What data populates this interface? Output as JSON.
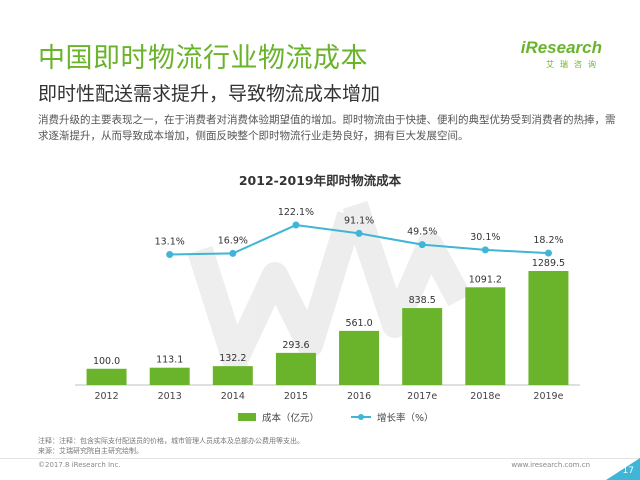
{
  "header": {
    "title": "中国即时物流行业物流成本",
    "subtitle": "即时性配送需求提升，导致物流成本增加",
    "body": "消费升级的主要表现之一，在于消费者对消费体验期望值的增加。即时物流由于快捷、便利的典型优势受到消费者的热捧，需求逐渐提升，从而导致成本增加，侧面反映整个即时物流行业走势良好，拥有巨大发展空间。"
  },
  "brand": {
    "logo": "iResearch",
    "cn": "艾瑞咨询"
  },
  "colors": {
    "accent": "#6ab42c",
    "bar": "#6ab42c",
    "line": "#3fb5d8"
  },
  "chart_data": {
    "type": "bar",
    "title": "2012-2019年即时物流成本",
    "categories": [
      "2012",
      "2013",
      "2014",
      "2015",
      "2016",
      "2017e",
      "2018e",
      "2019e"
    ],
    "series": [
      {
        "name": "成本（亿元）",
        "type": "bar",
        "values": [
          100.0,
          113.1,
          132.2,
          293.6,
          561.0,
          838.5,
          1091.2,
          1289.5
        ],
        "labels": [
          "100.0",
          "113.1",
          "132.2",
          "293.6",
          "561.0",
          "838.5",
          "1091.2",
          "1289.5"
        ]
      },
      {
        "name": "增长率（%）",
        "type": "line",
        "values": [
          null,
          13.1,
          16.9,
          122.1,
          91.1,
          49.5,
          30.1,
          18.2
        ],
        "labels": [
          "",
          "13.1%",
          "16.9%",
          "122.1%",
          "91.1%",
          "49.5%",
          "30.1%",
          "18.2%"
        ]
      }
    ],
    "legend_position": "bottom"
  },
  "notes": {
    "note": "注释：注释：包含实际支付配送员的价格，城市管理人员成本及总部办公费用等支出。",
    "source": "来源：艾瑞研究院自主研究绘制。"
  },
  "footer": {
    "copyright": "©2017.8 iResearch Inc.",
    "site": "www.iresearch.com.cn",
    "page": "17"
  }
}
